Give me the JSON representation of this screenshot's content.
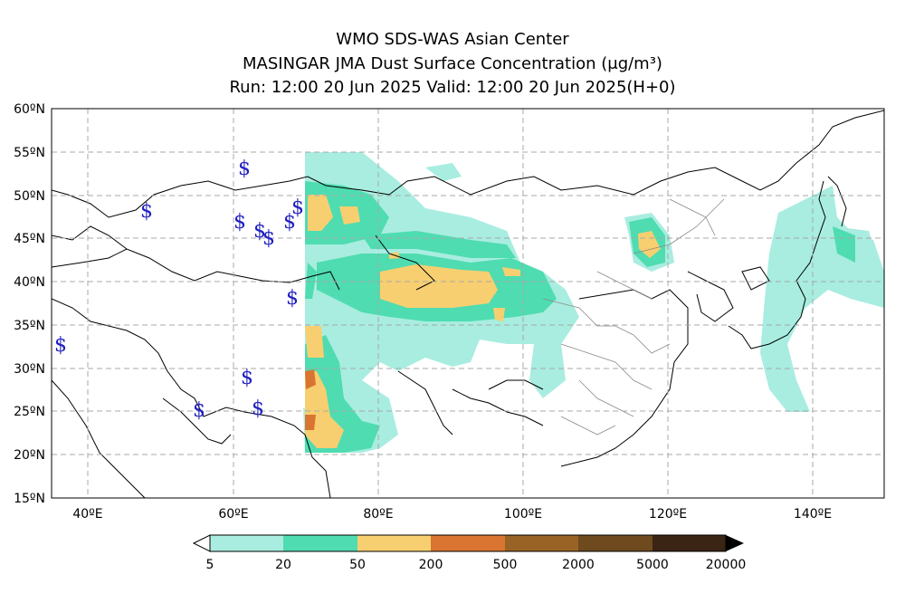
{
  "title": {
    "line1": "WMO SDS-WAS Asian Center",
    "line2": "MASINGAR JMA Dust Surface Concentration (μg/m³)",
    "line3": "Run: 12:00 20 Jun 2025    Valid: 12:00 20 Jun 2025(H+0)"
  },
  "map": {
    "lon_range": [
      35,
      150
    ],
    "lat_range": [
      15,
      60
    ],
    "lon_ticks": [
      "40ºE",
      "60ºE",
      "80ºE",
      "100ºE",
      "120ºE",
      "140ºE"
    ],
    "lat_ticks": [
      "15ºN",
      "20ºN",
      "25ºN",
      "30ºN",
      "35ºN",
      "40ºN",
      "45ºN",
      "50ºN",
      "55ºN",
      "60ºN"
    ],
    "grid": true
  },
  "colorbar": {
    "labels": [
      "5",
      "20",
      "50",
      "200",
      "500",
      "2000",
      "5000",
      "20000"
    ],
    "colors": [
      "#a8ede0",
      "#4fdcb0",
      "#f8cf70",
      "#d97531",
      "#996326",
      "#6e4a1e",
      "#3a2414"
    ]
  },
  "station_marker": "$"
}
